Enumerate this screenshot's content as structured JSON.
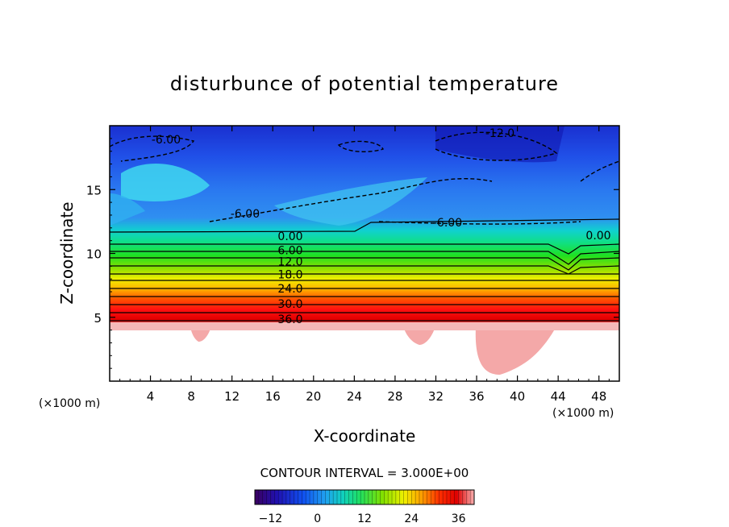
{
  "chart_data": {
    "type": "heatmap",
    "title": "disturbunce of potential temperature",
    "xlabel": "X-coordinate",
    "ylabel": "Z-coordinate",
    "x_unit": "(×1000 m)",
    "x_unit_right": "(×1000 m)",
    "xlim": [
      0,
      50
    ],
    "ylim": [
      0,
      20
    ],
    "x_ticks": [
      4,
      8,
      12,
      16,
      20,
      24,
      28,
      32,
      36,
      40,
      44,
      48
    ],
    "y_ticks": [
      5,
      10,
      15
    ],
    "contour_interval_text": "CONTOUR INTERVAL = 3.000E+00",
    "contour_interval": 3.0,
    "contour_lines": [
      {
        "label": "36.0",
        "value": 36,
        "z": 4.8
      },
      {
        "label": "30.0",
        "value": 30,
        "z": 6.0
      },
      {
        "label": "24.0",
        "value": 24,
        "z": 7.2
      },
      {
        "label": "18.0",
        "value": 18,
        "z": 8.3
      },
      {
        "label": "12.0",
        "value": 12,
        "z": 9.3
      },
      {
        "label": "6.00",
        "value": 6,
        "z": 10.2
      },
      {
        "label": "0.00",
        "value": 0,
        "z": 11.3
      }
    ],
    "negative_labels": [
      "-6.00",
      "-6.00",
      "-6.00",
      "-12.0"
    ],
    "right_zero_label": "0.00",
    "colorbar": {
      "min": -16,
      "max": 40,
      "ticks": [
        -12,
        0,
        12,
        24,
        36
      ]
    }
  }
}
